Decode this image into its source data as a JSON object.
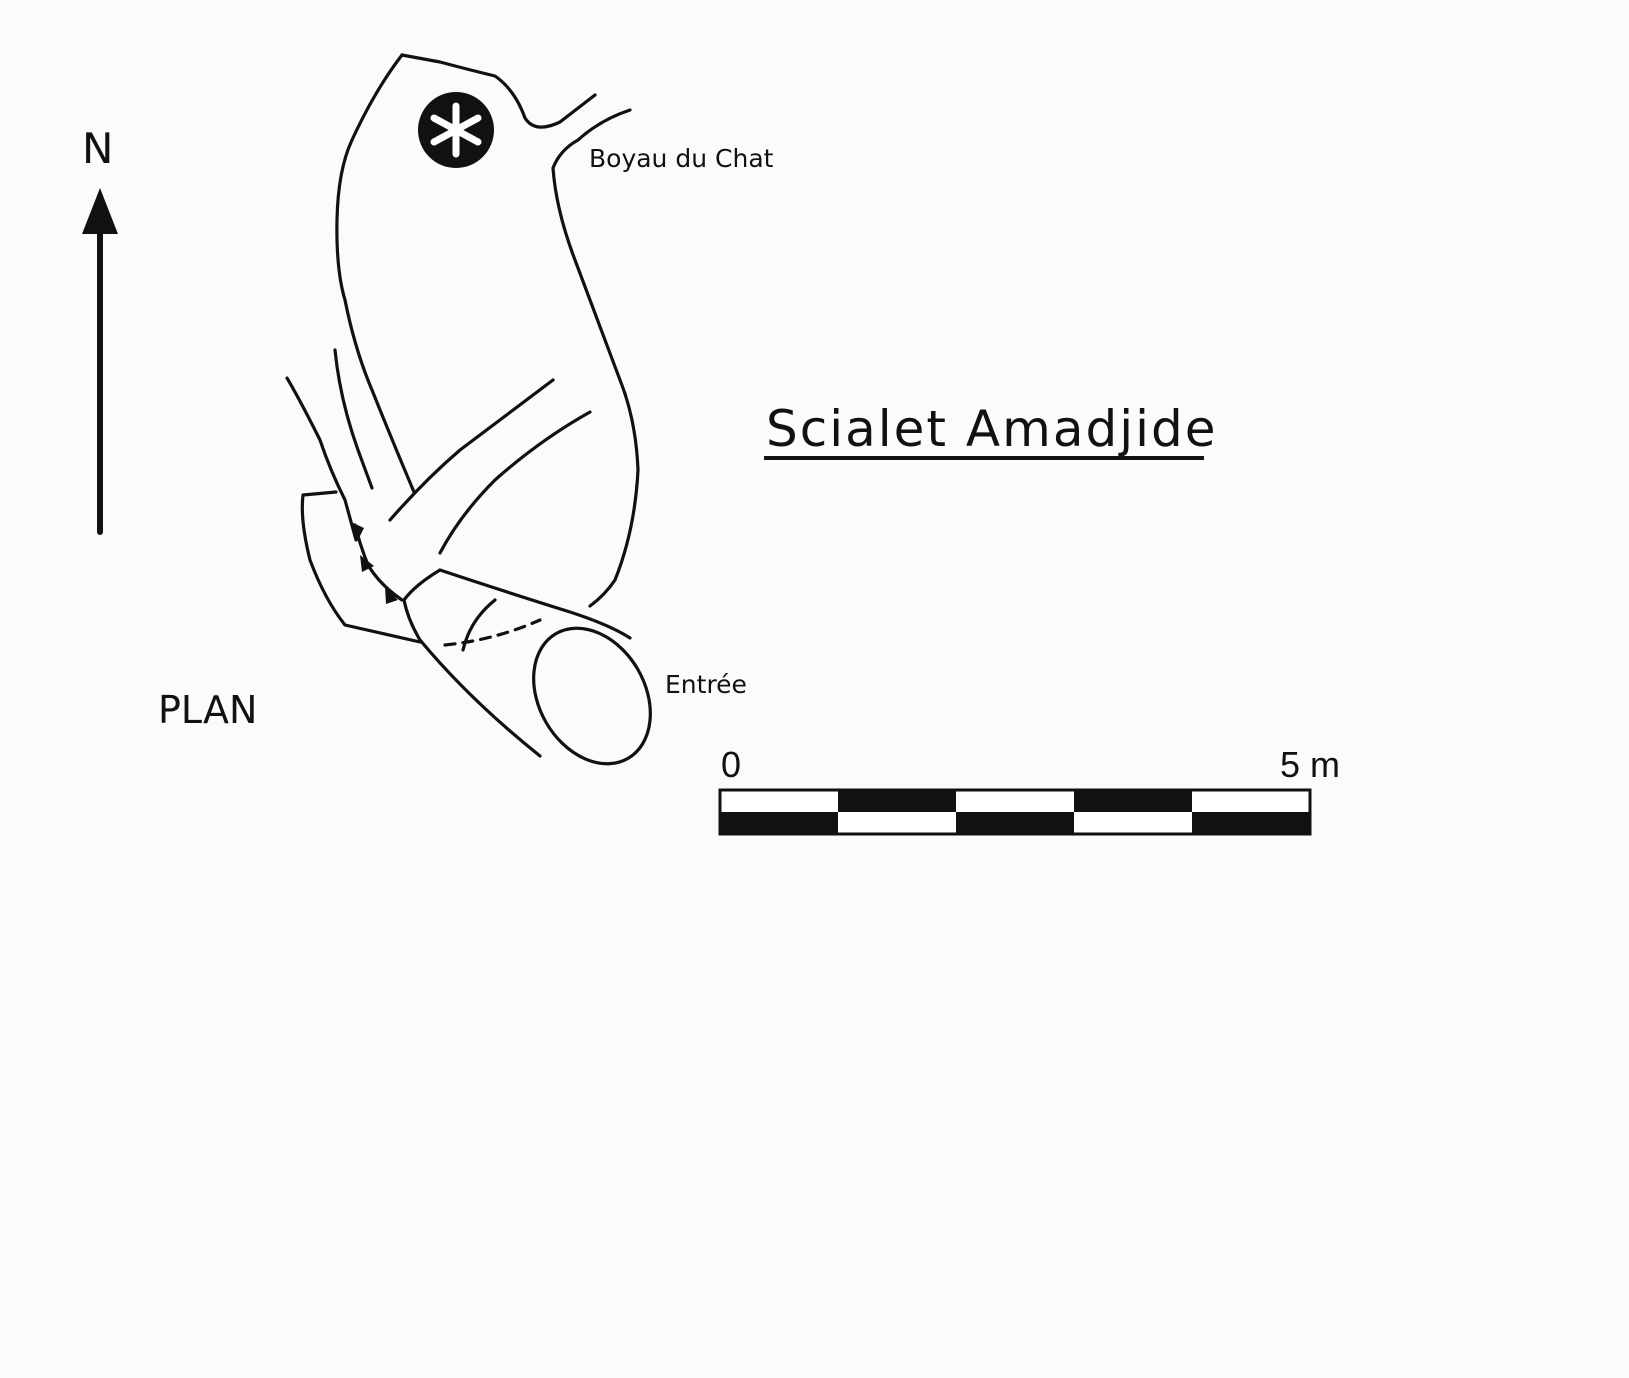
{
  "map": {
    "north_label": "N",
    "plan_label": "PLAN",
    "title": "Scialet Amadjide",
    "labels": {
      "boyau": "Boyau du Chat",
      "entree": "Entrée"
    },
    "scale": {
      "start_label": "0",
      "end_label": "5 m",
      "segments": 5,
      "fill_color": "#111111",
      "empty_color": "#ffffff"
    },
    "icons": [
      "north-arrow-icon",
      "shaft-symbol-icon"
    ]
  }
}
